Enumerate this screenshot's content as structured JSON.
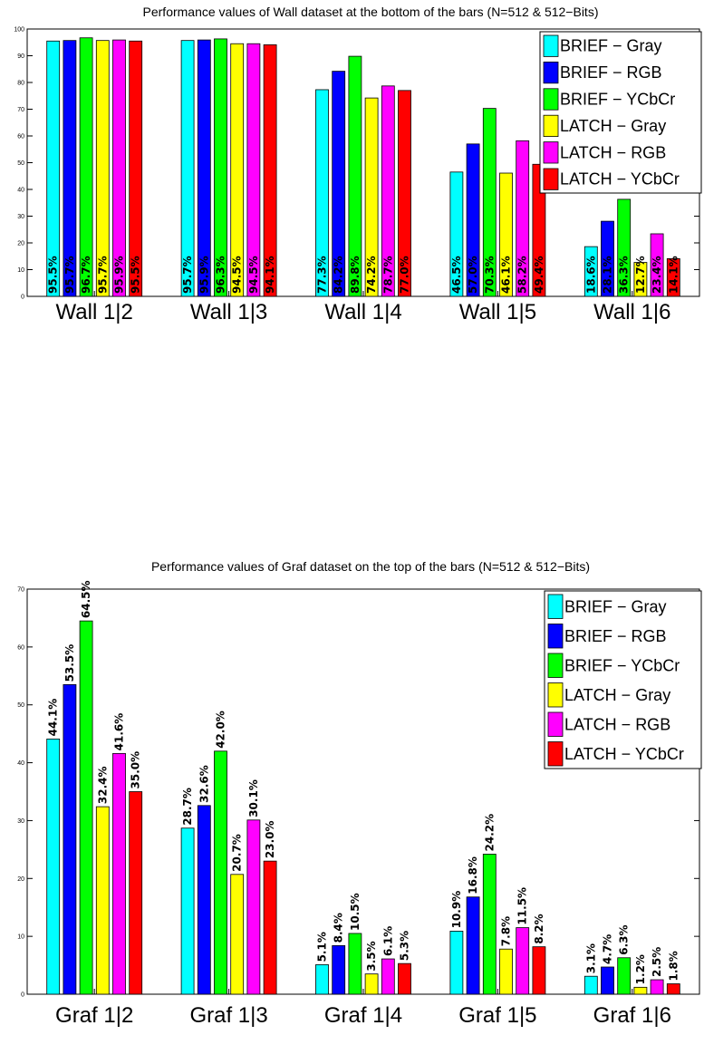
{
  "chart_data": [
    {
      "type": "bar",
      "title": "Performance values of Wall dataset at the bottom of the bars (N=512 & 512−Bits)",
      "categories": [
        "Wall 1|2",
        "Wall 1|3",
        "Wall 1|4",
        "Wall 1|5",
        "Wall 1|6"
      ],
      "ylim": [
        0,
        100
      ],
      "yticks": [
        0,
        10,
        20,
        30,
        40,
        50,
        60,
        70,
        80,
        90,
        100
      ],
      "label_position": "bottom",
      "legend_position": "top-right",
      "grid": false,
      "series": [
        {
          "name": "BRIEF − Gray",
          "color": "#00FFFF",
          "values": [
            95.5,
            95.7,
            77.3,
            46.5,
            18.6
          ],
          "labels": [
            "95.5%",
            "95.7%",
            "77.3%",
            "46.5%",
            "18.6%"
          ]
        },
        {
          "name": "BRIEF − RGB",
          "color": "#0000FF",
          "values": [
            95.7,
            95.9,
            84.2,
            57.0,
            28.1
          ],
          "labels": [
            "95.7%",
            "95.9%",
            "84.2%",
            "57.0%",
            "28.1%"
          ]
        },
        {
          "name": "BRIEF − YCbCr",
          "color": "#00FF00",
          "values": [
            96.7,
            96.3,
            89.8,
            70.3,
            36.3
          ],
          "labels": [
            "96.7%",
            "96.3%",
            "89.8%",
            "70.3%",
            "36.3%"
          ]
        },
        {
          "name": "LATCH − Gray",
          "color": "#FFFF00",
          "values": [
            95.7,
            94.5,
            74.2,
            46.1,
            12.7
          ],
          "labels": [
            "95.7%",
            "94.5%",
            "74.2%",
            "46.1%",
            "12.7%"
          ]
        },
        {
          "name": "LATCH − RGB",
          "color": "#FF00FF",
          "values": [
            95.9,
            94.5,
            78.7,
            58.2,
            23.4
          ],
          "labels": [
            "95.9%",
            "94.5%",
            "78.7%",
            "58.2%",
            "23.4%"
          ]
        },
        {
          "name": "LATCH − YCbCr",
          "color": "#FF0000",
          "values": [
            95.5,
            94.1,
            77.0,
            49.4,
            14.1
          ],
          "labels": [
            "95.5%",
            "94.1%",
            "77.0%",
            "49.4%",
            "14.1%"
          ]
        }
      ]
    },
    {
      "type": "bar",
      "title": "Performance values of Graf dataset on the top of the bars (N=512 & 512−Bits)",
      "categories": [
        "Graf 1|2",
        "Graf 1|3",
        "Graf 1|4",
        "Graf 1|5",
        "Graf 1|6"
      ],
      "ylim": [
        0,
        70
      ],
      "yticks": [
        0,
        10,
        20,
        30,
        40,
        50,
        60,
        70
      ],
      "label_position": "top",
      "legend_position": "top-right",
      "grid": false,
      "series": [
        {
          "name": "BRIEF − Gray",
          "color": "#00FFFF",
          "values": [
            44.1,
            28.7,
            5.1,
            10.9,
            3.1
          ],
          "labels": [
            "44.1%",
            "28.7%",
            "5.1%",
            "10.9%",
            "3.1%"
          ]
        },
        {
          "name": "BRIEF − RGB",
          "color": "#0000FF",
          "values": [
            53.5,
            32.6,
            8.4,
            16.8,
            4.7
          ],
          "labels": [
            "53.5%",
            "32.6%",
            "8.4%",
            "16.8%",
            "4.7%"
          ]
        },
        {
          "name": "BRIEF − YCbCr",
          "color": "#00FF00",
          "values": [
            64.5,
            42.0,
            10.5,
            24.2,
            6.3
          ],
          "labels": [
            "64.5%",
            "42.0%",
            "10.5%",
            "24.2%",
            "6.3%"
          ]
        },
        {
          "name": "LATCH − Gray",
          "color": "#FFFF00",
          "values": [
            32.4,
            20.7,
            3.5,
            7.8,
            1.2
          ],
          "labels": [
            "32.4%",
            "20.7%",
            "3.5%",
            "7.8%",
            "1.2%"
          ]
        },
        {
          "name": "LATCH − RGB",
          "color": "#FF00FF",
          "values": [
            41.6,
            30.1,
            6.1,
            11.5,
            2.5
          ],
          "labels": [
            "41.6%",
            "30.1%",
            "6.1%",
            "11.5%",
            "2.5%"
          ]
        },
        {
          "name": "LATCH − YCbCr",
          "color": "#FF0000",
          "values": [
            35.0,
            23.0,
            5.3,
            8.2,
            1.8
          ],
          "labels": [
            "35.0%",
            "23.0%",
            "5.3%",
            "8.2%",
            "1.8%"
          ]
        }
      ]
    }
  ]
}
